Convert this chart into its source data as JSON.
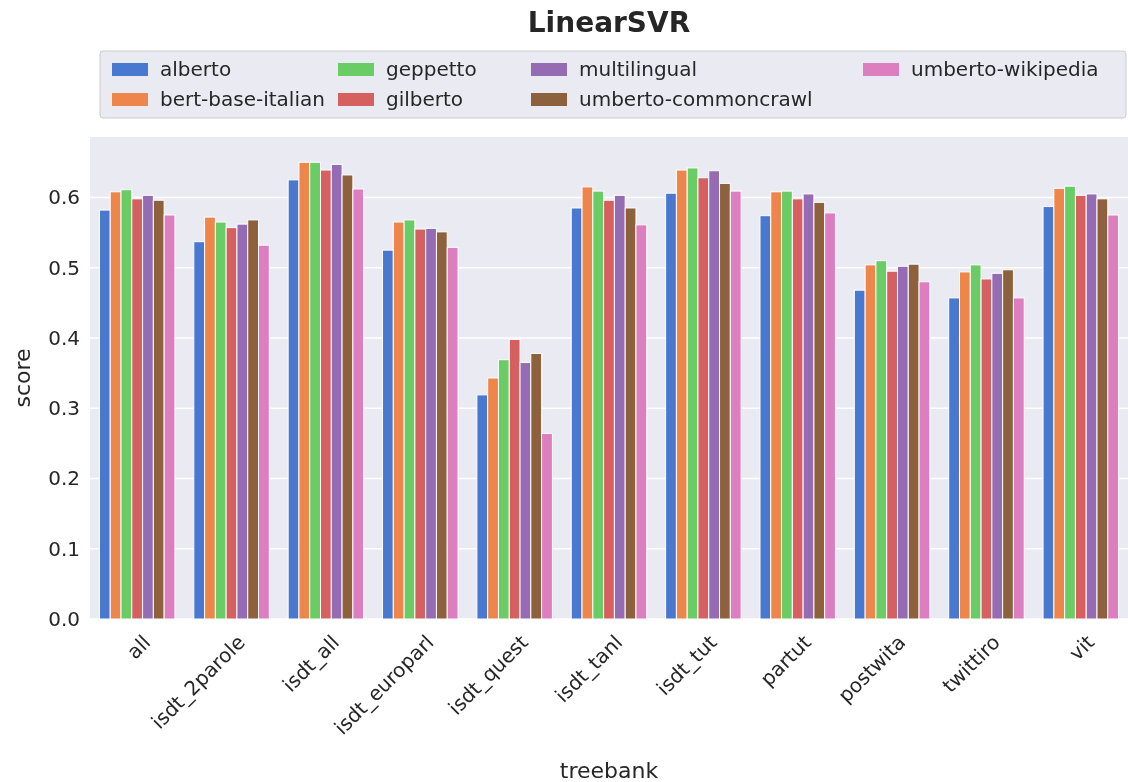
{
  "chart_data": {
    "type": "bar",
    "title": "LinearSVR",
    "xlabel": "treebank",
    "ylabel": "score",
    "categories": [
      "all",
      "isdt_2parole",
      "isdt_all",
      "isdt_europarl",
      "isdt_quest",
      "isdt_tanl",
      "isdt_tut",
      "partut",
      "postwita",
      "twittiro",
      "vit"
    ],
    "series": [
      {
        "name": "alberto",
        "color": "#4878d0",
        "values": [
          0.582,
          0.537,
          0.625,
          0.525,
          0.319,
          0.585,
          0.606,
          0.574,
          0.468,
          0.457,
          0.587
        ]
      },
      {
        "name": "bert-base-italian",
        "color": "#ee854a",
        "values": [
          0.608,
          0.572,
          0.65,
          0.565,
          0.343,
          0.615,
          0.639,
          0.608,
          0.504,
          0.494,
          0.613
        ]
      },
      {
        "name": "geppetto",
        "color": "#6acc64",
        "values": [
          0.611,
          0.565,
          0.65,
          0.568,
          0.369,
          0.609,
          0.642,
          0.609,
          0.51,
          0.504,
          0.616
        ]
      },
      {
        "name": "gilberto",
        "color": "#d65f5f",
        "values": [
          0.598,
          0.557,
          0.639,
          0.555,
          0.398,
          0.596,
          0.628,
          0.598,
          0.495,
          0.484,
          0.603
        ]
      },
      {
        "name": "multilingual",
        "color": "#956cb4",
        "values": [
          0.603,
          0.562,
          0.647,
          0.556,
          0.365,
          0.603,
          0.638,
          0.605,
          0.502,
          0.492,
          0.605
        ]
      },
      {
        "name": "umberto-commoncrawl",
        "color": "#8c613c",
        "values": [
          0.596,
          0.568,
          0.632,
          0.551,
          0.378,
          0.585,
          0.62,
          0.593,
          0.505,
          0.497,
          0.598
        ]
      },
      {
        "name": "umberto-wikipedia",
        "color": "#dc7ec0",
        "values": [
          0.575,
          0.532,
          0.612,
          0.529,
          0.264,
          0.561,
          0.609,
          0.578,
          0.48,
          0.457,
          0.575
        ]
      }
    ],
    "ylim": [
      0,
      0.686
    ],
    "yticks": [
      {
        "value": 0,
        "label": "0.0"
      },
      0.1,
      0.2,
      0.3,
      0.4,
      0.5,
      0.6
    ],
    "grid": "y",
    "legend": "top"
  }
}
